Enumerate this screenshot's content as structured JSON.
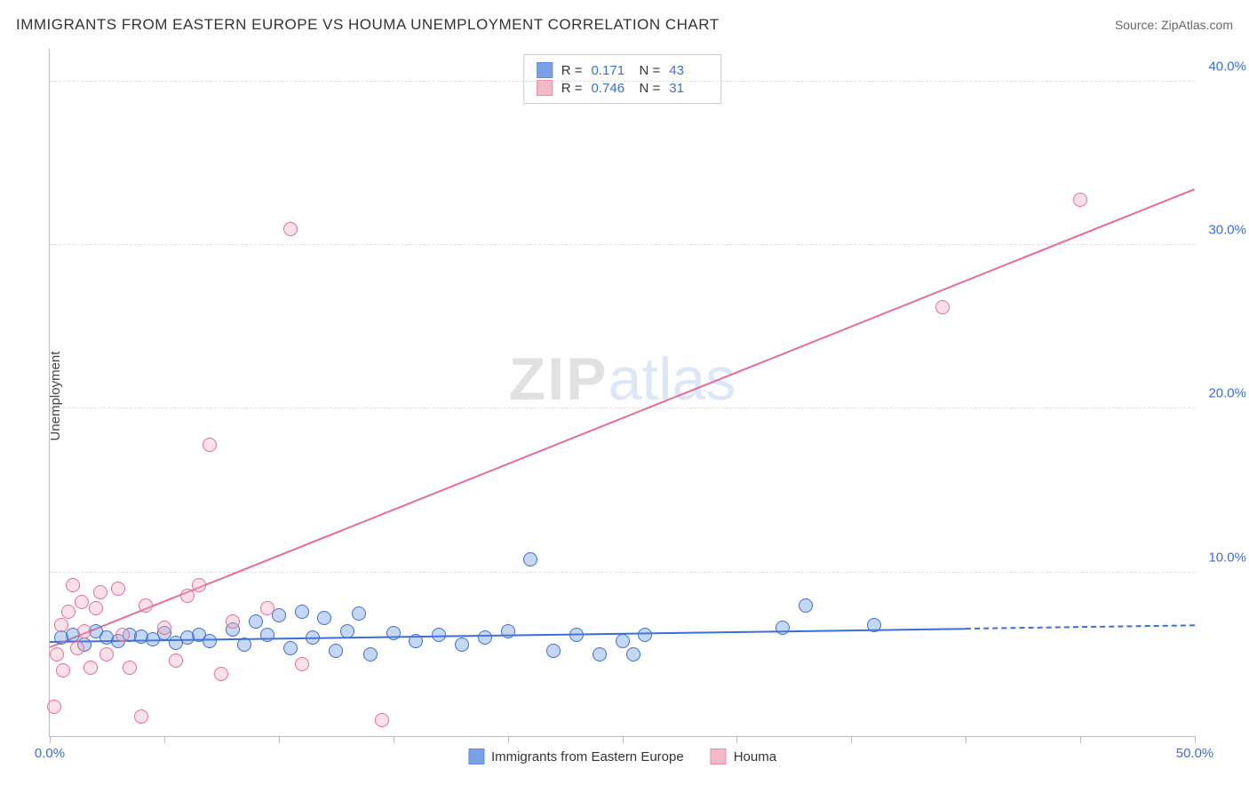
{
  "title": "IMMIGRANTS FROM EASTERN EUROPE VS HOUMA UNEMPLOYMENT CORRELATION CHART",
  "source_label": "Source: ",
  "source_name": "ZipAtlas.com",
  "ylabel": "Unemployment",
  "watermark": {
    "part1": "ZIP",
    "part2": "atlas"
  },
  "chart": {
    "type": "scatter",
    "background_color": "#ffffff",
    "grid_color": "#dddddd",
    "axis_color": "#bbbbbb",
    "tick_label_color": "#3a6fd8",
    "tick_fontsize": 15,
    "ylabel_fontsize": 15,
    "title_fontsize": 17,
    "xlim": [
      0,
      50
    ],
    "ylim": [
      0,
      42
    ],
    "yticks": [
      10,
      20,
      30,
      40
    ],
    "ytick_labels": [
      "10.0%",
      "20.0%",
      "30.0%",
      "40.0%"
    ],
    "xtick_positions": [
      0,
      5,
      10,
      15,
      20,
      25,
      30,
      35,
      40,
      45,
      50
    ],
    "xtick_labels": {
      "0": "0.0%",
      "50": "50.0%"
    },
    "marker_radius": 8,
    "marker_border_width": 1.5,
    "marker_fill_opacity": 0.35,
    "series": [
      {
        "name": "Immigrants from Eastern Europe",
        "color": "#5a8cdc",
        "stroke": "#3a6fd8",
        "R_label": "R =",
        "R": "0.171",
        "N_label": "N =",
        "N": "43",
        "trend": {
          "x1": 0,
          "y1": 5.8,
          "x2_solid": 40,
          "y2_solid": 6.6,
          "x2": 50,
          "y2": 6.8
        },
        "points": [
          [
            0.5,
            6.0
          ],
          [
            1.0,
            6.2
          ],
          [
            1.5,
            5.6
          ],
          [
            2.0,
            6.4
          ],
          [
            2.5,
            6.0
          ],
          [
            3.0,
            5.8
          ],
          [
            3.5,
            6.2
          ],
          [
            4.0,
            6.1
          ],
          [
            4.5,
            5.9
          ],
          [
            5.0,
            6.3
          ],
          [
            5.5,
            5.7
          ],
          [
            6.0,
            6.0
          ],
          [
            6.5,
            6.2
          ],
          [
            7.0,
            5.8
          ],
          [
            8.0,
            6.5
          ],
          [
            8.5,
            5.6
          ],
          [
            9.0,
            7.0
          ],
          [
            9.5,
            6.2
          ],
          [
            10.0,
            7.4
          ],
          [
            10.5,
            5.4
          ],
          [
            11.0,
            7.6
          ],
          [
            11.5,
            6.0
          ],
          [
            12.0,
            7.2
          ],
          [
            12.5,
            5.2
          ],
          [
            13.0,
            6.4
          ],
          [
            13.5,
            7.5
          ],
          [
            14.0,
            5.0
          ],
          [
            15.0,
            6.3
          ],
          [
            16.0,
            5.8
          ],
          [
            17.0,
            6.2
          ],
          [
            18.0,
            5.6
          ],
          [
            19.0,
            6.0
          ],
          [
            20.0,
            6.4
          ],
          [
            21.0,
            10.8
          ],
          [
            22.0,
            5.2
          ],
          [
            23.0,
            6.2
          ],
          [
            24.0,
            5.0
          ],
          [
            25.0,
            5.8
          ],
          [
            25.5,
            5.0
          ],
          [
            26.0,
            6.2
          ],
          [
            32.0,
            6.6
          ],
          [
            33.0,
            8.0
          ],
          [
            36.0,
            6.8
          ]
        ]
      },
      {
        "name": "Houma",
        "color": "#f0a8bc",
        "stroke": "#e86b92",
        "R_label": "R =",
        "R": "0.746",
        "N_label": "N =",
        "N": "31",
        "trend": {
          "x1": 0,
          "y1": 5.5,
          "x2_solid": 50,
          "y2_solid": 33.5,
          "x2": 50,
          "y2": 33.5
        },
        "points": [
          [
            0.3,
            5.0
          ],
          [
            0.5,
            6.8
          ],
          [
            0.6,
            4.0
          ],
          [
            0.8,
            7.6
          ],
          [
            1.0,
            9.2
          ],
          [
            1.2,
            5.4
          ],
          [
            1.4,
            8.2
          ],
          [
            1.5,
            6.4
          ],
          [
            1.8,
            4.2
          ],
          [
            2.0,
            7.8
          ],
          [
            2.2,
            8.8
          ],
          [
            2.5,
            5.0
          ],
          [
            3.0,
            9.0
          ],
          [
            3.2,
            6.2
          ],
          [
            3.5,
            4.2
          ],
          [
            4.0,
            1.2
          ],
          [
            4.2,
            8.0
          ],
          [
            5.0,
            6.6
          ],
          [
            5.5,
            4.6
          ],
          [
            6.0,
            8.6
          ],
          [
            6.5,
            9.2
          ],
          [
            7.0,
            17.8
          ],
          [
            7.5,
            3.8
          ],
          [
            8.0,
            7.0
          ],
          [
            9.5,
            7.8
          ],
          [
            10.5,
            31.0
          ],
          [
            11.0,
            4.4
          ],
          [
            14.5,
            1.0
          ],
          [
            39.0,
            26.2
          ],
          [
            45.0,
            32.8
          ],
          [
            0.2,
            1.8
          ]
        ]
      }
    ]
  }
}
